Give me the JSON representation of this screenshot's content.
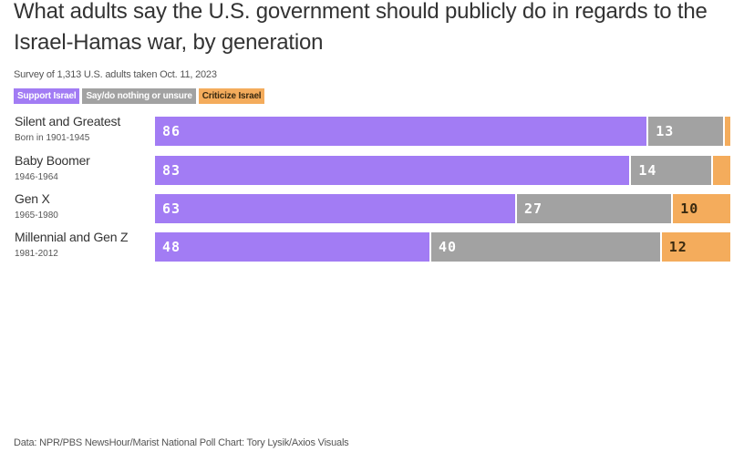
{
  "chart_data": {
    "type": "bar",
    "orientation": "horizontal",
    "stacked": true,
    "title": "What adults say the U.S. government should publicly do in regards to the Israel-Hamas war, by generation",
    "subtitle": "Survey of 1,313 U.S. adults taken Oct. 11, 2023",
    "categories": [
      {
        "name": "Silent and Greatest",
        "sub": "Born in 1901-1945"
      },
      {
        "name": "Baby Boomer",
        "sub": "1946-1964"
      },
      {
        "name": "Gen X",
        "sub": "1965-1980"
      },
      {
        "name": "Millennial and Gen Z",
        "sub": "1981-2012"
      }
    ],
    "series": [
      {
        "name": "Support Israel",
        "color": "#a27cf4",
        "values": [
          86,
          83,
          63,
          48
        ]
      },
      {
        "name": "Say/do nothing or unsure",
        "color": "#a2a2a2",
        "values": [
          13,
          14,
          27,
          40
        ]
      },
      {
        "name": "Criticize Israel",
        "color": "#f4ac5c",
        "values": [
          1,
          3,
          10,
          12
        ]
      }
    ],
    "hidden_labels": [
      [
        false,
        false,
        true
      ],
      [
        false,
        false,
        true
      ],
      [
        false,
        false,
        false
      ],
      [
        false,
        false,
        false
      ]
    ],
    "xlim": [
      0,
      100
    ],
    "footer": "Data: NPR/PBS NewsHour/Marist National Poll Chart: Tory Lysik/Axios Visuals"
  }
}
